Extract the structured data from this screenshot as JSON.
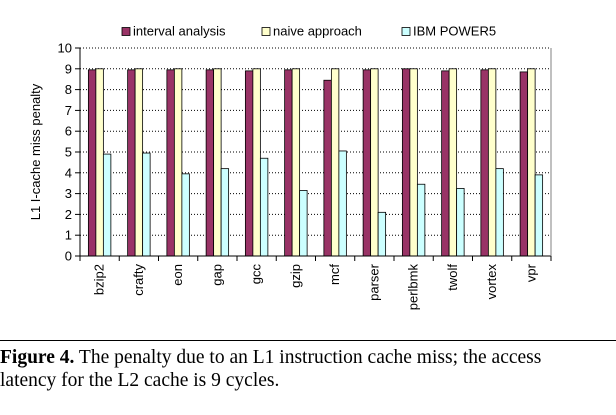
{
  "colors": {
    "interval analysis": "#993366",
    "naive approach": "#ffffcc",
    "IBM POWER5": "#ccffff",
    "bar_stroke": "#000000",
    "grid": "#000000"
  },
  "chart_data": {
    "type": "bar",
    "title": "",
    "xlabel": "",
    "ylabel": "L1 I-cache miss penalty",
    "ylim": [
      0,
      10
    ],
    "yticks": [
      "0",
      "1",
      "2",
      "3",
      "4",
      "5",
      "6",
      "7",
      "8",
      "9",
      "10"
    ],
    "grid": "horizontal dotted",
    "legend_position": "top",
    "categories": [
      "bzip2",
      "crafty",
      "eon",
      "gap",
      "gcc",
      "gzip",
      "mcf",
      "parser",
      "perlbmk",
      "twolf",
      "vortex",
      "vpr"
    ],
    "series": [
      {
        "name": "interval analysis",
        "values": [
          8.95,
          8.95,
          8.95,
          8.95,
          8.9,
          8.95,
          8.45,
          8.95,
          9.0,
          8.9,
          8.95,
          8.85
        ]
      },
      {
        "name": "naive approach",
        "values": [
          9.0,
          9.0,
          9.0,
          9.0,
          9.0,
          9.0,
          9.0,
          9.0,
          9.0,
          9.0,
          9.0,
          9.0
        ]
      },
      {
        "name": "IBM POWER5",
        "values": [
          4.9,
          4.95,
          3.95,
          4.2,
          4.7,
          3.15,
          5.05,
          2.1,
          3.45,
          3.25,
          4.2,
          3.9
        ]
      }
    ]
  },
  "caption": {
    "label": "Figure 4.",
    "text": "The penalty due to an L1 instruction cache miss; the access latency for the L2 cache is 9 cycles."
  }
}
